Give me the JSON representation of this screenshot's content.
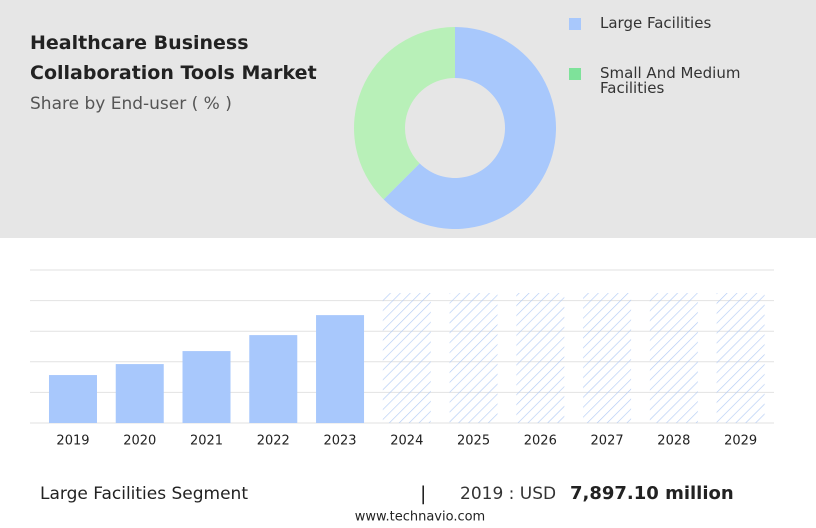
{
  "chart_data": [
    {
      "type": "pie",
      "title": "Healthcare Business Collaboration Tools Market",
      "subtitle": "Share by End-user ( % )",
      "categories": [
        "Large Facilities",
        "Small And Medium Facilities"
      ],
      "values": [
        62.5,
        37.5
      ],
      "colors": [
        "#a8c8fc",
        "#b8f0b8"
      ],
      "legend_colors": [
        "#a8c8fc",
        "#7ee29a"
      ]
    },
    {
      "type": "bar",
      "categories": [
        "2019",
        "2020",
        "2021",
        "2022",
        "2023",
        "2024",
        "2025",
        "2026",
        "2027",
        "2028",
        "2029"
      ],
      "values": [
        7897.1,
        9707,
        11845,
        14478,
        17768,
        null,
        null,
        null,
        null,
        null,
        null
      ],
      "color": "#a8c8fc",
      "ylim": [
        0,
        25200
      ],
      "grid": true
    }
  ],
  "footer": {
    "segment": "Large Facilities Segment",
    "separator": "|",
    "year_label": "2019 : USD",
    "value": "7,897.10 million",
    "source": "www.technavio.com"
  }
}
